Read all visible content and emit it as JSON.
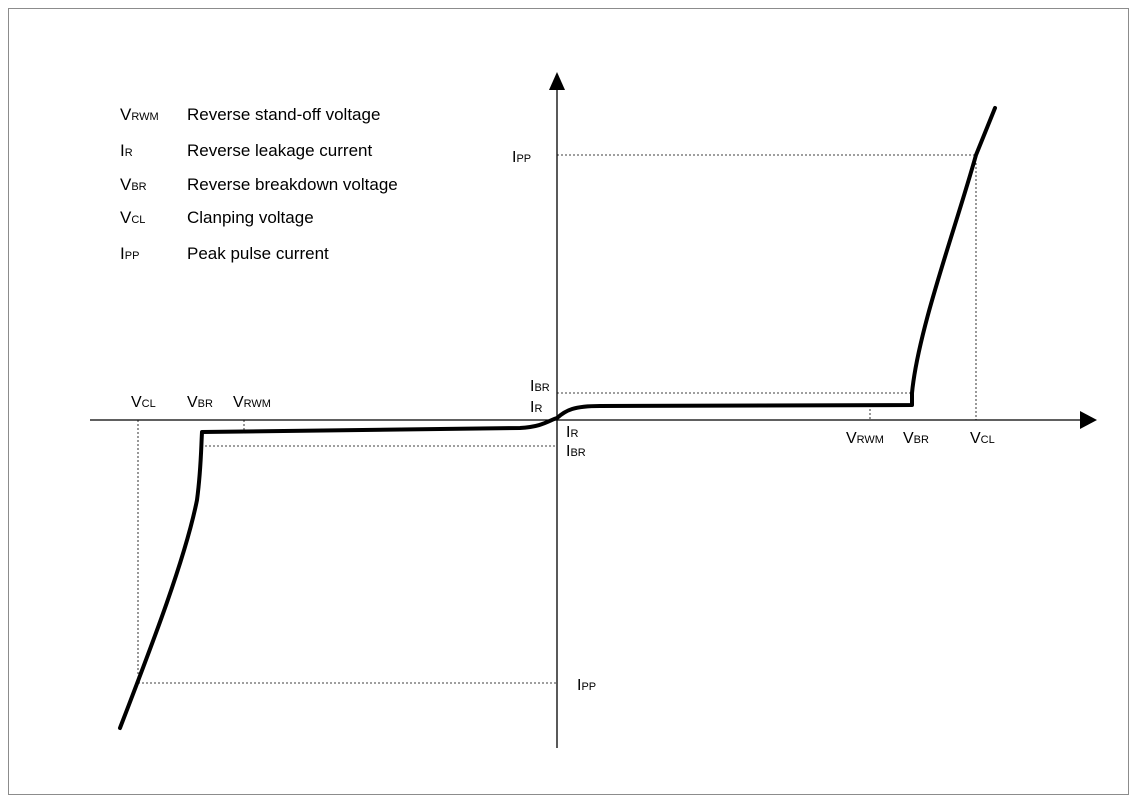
{
  "legend": [
    {
      "main": "V",
      "sub": "RWM",
      "desc": "Reverse stand-off voltage"
    },
    {
      "main": "I",
      "sub": "R",
      "desc": "Reverse leakage current"
    },
    {
      "main": "V",
      "sub": "BR",
      "desc": "Reverse breakdown voltage"
    },
    {
      "main": "V",
      "sub": "CL",
      "desc": "Clanping voltage"
    },
    {
      "main": "I",
      "sub": "PP",
      "desc": "Peak pulse current"
    }
  ],
  "labels": {
    "ipp_top": {
      "main": "I",
      "sub": "PP"
    },
    "ibr_pos": {
      "main": "I",
      "sub": "BR"
    },
    "ir_pos": {
      "main": "I",
      "sub": "R"
    },
    "ir_neg": {
      "main": "I",
      "sub": "R"
    },
    "ibr_neg": {
      "main": "I",
      "sub": "BR"
    },
    "ipp_bottom": {
      "main": "I",
      "sub": "PP"
    },
    "vcl_neg": {
      "main": "V",
      "sub": "CL"
    },
    "vbr_neg": {
      "main": "V",
      "sub": "BR"
    },
    "vrwm_neg": {
      "main": "V",
      "sub": "RWM"
    },
    "vrwm_pos": {
      "main": "V",
      "sub": "RWM"
    },
    "vbr_pos": {
      "main": "V",
      "sub": "BR"
    },
    "vcl_pos": {
      "main": "V",
      "sub": "CL"
    }
  },
  "colors": {
    "line": "#000000",
    "guide": "#000000",
    "border": "#8c8c8c"
  }
}
